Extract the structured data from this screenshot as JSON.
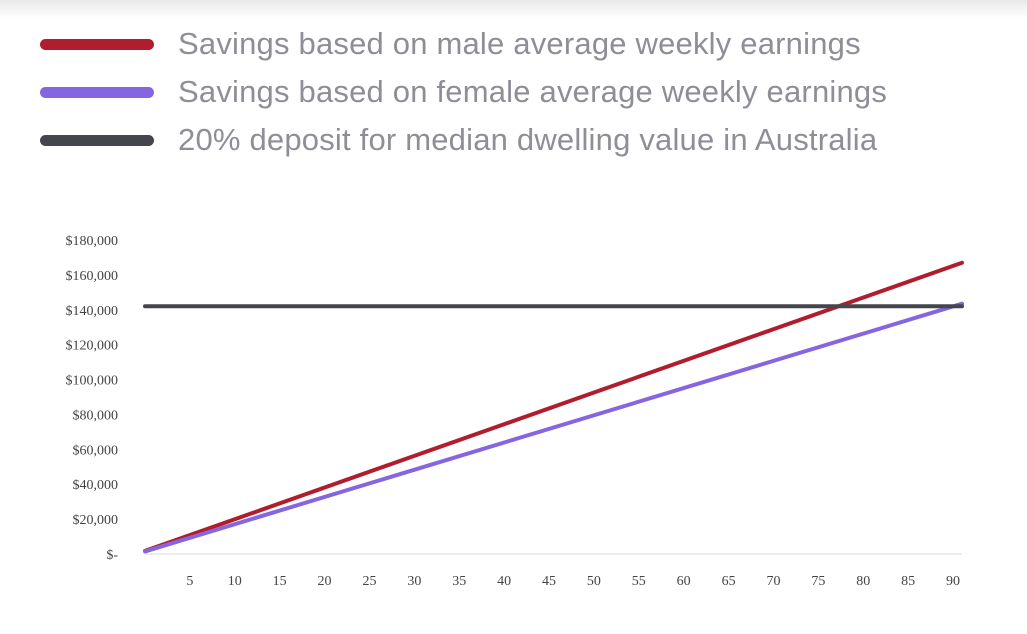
{
  "legend": {
    "items": [
      {
        "label": "Savings based on male average weekly earnings",
        "color": "#b01e2d"
      },
      {
        "label": "Savings based on female average weekly earnings",
        "color": "#8566e0"
      },
      {
        "label": "20% deposit for median dwelling value in Australia",
        "color": "#45464d"
      }
    ]
  },
  "chart_data": {
    "type": "line",
    "title": "",
    "xlabel": "",
    "ylabel": "",
    "xlim": [
      0,
      91
    ],
    "ylim": [
      0,
      180000
    ],
    "x_ticks": [
      5,
      10,
      15,
      20,
      25,
      30,
      35,
      40,
      45,
      50,
      55,
      60,
      65,
      70,
      75,
      80,
      85,
      90
    ],
    "y_ticks": [
      {
        "value": 0,
        "label": "$-"
      },
      {
        "value": 20000,
        "label": "$20,000"
      },
      {
        "value": 40000,
        "label": "$40,000"
      },
      {
        "value": 60000,
        "label": "$60,000"
      },
      {
        "value": 80000,
        "label": "$80,000"
      },
      {
        "value": 100000,
        "label": "$100,000"
      },
      {
        "value": 120000,
        "label": "$120,000"
      },
      {
        "value": 140000,
        "label": "$140,000"
      },
      {
        "value": 160000,
        "label": "$160,000"
      },
      {
        "value": 180000,
        "label": "$180,000"
      }
    ],
    "grid": false,
    "legend_position": "top-left",
    "series": [
      {
        "name": "Savings based on male average weekly earnings",
        "color": "#b01e2d",
        "x": [
          0,
          91
        ],
        "y": [
          1800,
          167000
        ]
      },
      {
        "name": "Savings based on female average weekly earnings",
        "color": "#8566e0",
        "x": [
          0,
          91
        ],
        "y": [
          1500,
          143500
        ]
      },
      {
        "name": "20% deposit for median dwelling value in Australia",
        "color": "#45464d",
        "x": [
          0,
          91
        ],
        "y": [
          142000,
          142000
        ]
      }
    ]
  }
}
